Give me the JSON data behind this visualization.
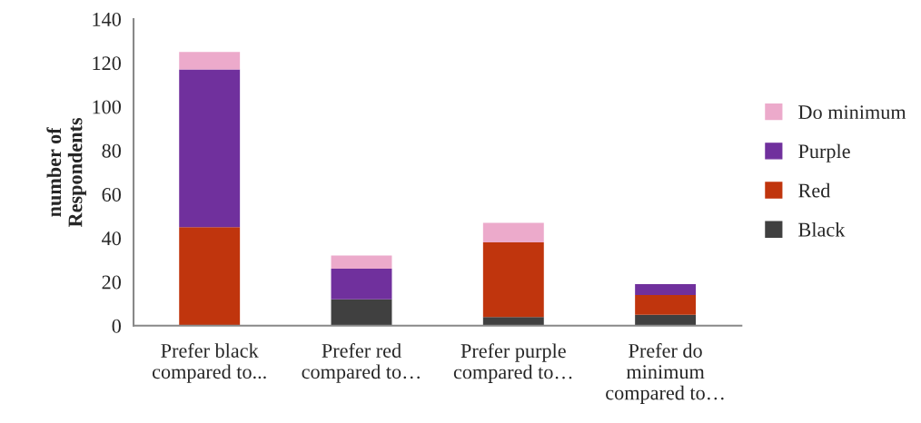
{
  "chart_data": {
    "type": "bar",
    "stacked": true,
    "ylabel": "number of\nRespondents",
    "categories": [
      "Prefer black\ncompared to...",
      "Prefer red\ncompared to…",
      "Prefer purple\ncompared to…",
      "Prefer do\nminimum\ncompared to…"
    ],
    "series": [
      {
        "name": "Black",
        "color": "#404040",
        "values": [
          0,
          12,
          4,
          5
        ]
      },
      {
        "name": "Red",
        "color": "#c0350d",
        "values": [
          45,
          0,
          34,
          9
        ]
      },
      {
        "name": "Purple",
        "color": "#70309d",
        "values": [
          72,
          14,
          0,
          5
        ]
      },
      {
        "name": "Do minimum",
        "color": "#ecaacb",
        "values": [
          8,
          6,
          9,
          0
        ]
      }
    ],
    "ylim": [
      0,
      140
    ],
    "yticks": [
      0,
      20,
      40,
      60,
      80,
      100,
      120,
      140
    ],
    "grid": false,
    "legend": "right"
  }
}
